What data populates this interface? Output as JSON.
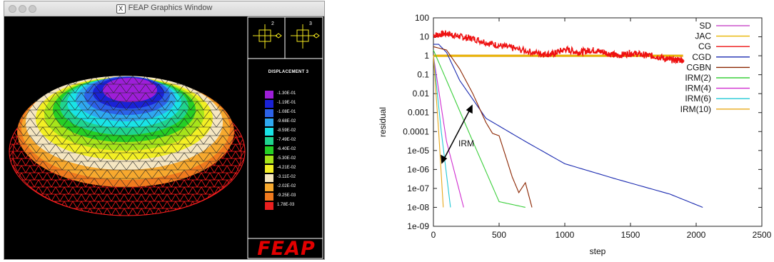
{
  "feap_window": {
    "title": "FEAP Graphics Window",
    "title_icon": "x11-icon",
    "legend_title": "DISPLACEMENT 3",
    "axis_labels": [
      "2",
      "3"
    ],
    "legend": [
      {
        "value": "-1.30E-01",
        "color": "#9e1ed8"
      },
      {
        "value": "-1.19E-01",
        "color": "#1a22d6"
      },
      {
        "value": "-1.08E-01",
        "color": "#2c62e8"
      },
      {
        "value": "-9.68E-02",
        "color": "#2fa8f0"
      },
      {
        "value": "-8.59E-02",
        "color": "#19e3e6"
      },
      {
        "value": "-7.49E-02",
        "color": "#1fd48f"
      },
      {
        "value": "-6.40E-02",
        "color": "#25cf25"
      },
      {
        "value": "-5.30E-02",
        "color": "#a6e41a"
      },
      {
        "value": "-4.21E-02",
        "color": "#f3ef24"
      },
      {
        "value": "-3.11E-02",
        "color": "#f5e6c1"
      },
      {
        "value": "-2.02E-02",
        "color": "#f7a92e"
      },
      {
        "value": "-9.25E-03",
        "color": "#f07a1e"
      },
      {
        "value": "1.78E-03",
        "color": "#ea1f1f"
      }
    ],
    "logo": "FEAP"
  },
  "chart_data": {
    "type": "line",
    "xlabel": "step",
    "ylabel": "residual",
    "xlim": [
      0,
      2500
    ],
    "ylim": [
      1e-09,
      100
    ],
    "yscale": "log",
    "xticks": [
      "0",
      "500",
      "1000",
      "1500",
      "2000",
      "2500"
    ],
    "yticks": [
      "100",
      "10",
      "1",
      "0.1",
      "0.01",
      "0.001",
      "0.0001",
      "1e-05",
      "1e-06",
      "1e-07",
      "1e-08",
      "1e-09"
    ],
    "legend_position": "top-right",
    "annotation": "IRM",
    "series": [
      {
        "name": "SD",
        "color": "#cc55cc",
        "points": [
          [
            0,
            1.0
          ],
          [
            1900,
            1.0
          ]
        ]
      },
      {
        "name": "JAC",
        "color": "#e8b400",
        "points": [
          [
            0,
            1.0
          ],
          [
            1900,
            1.0
          ]
        ]
      },
      {
        "name": "CG",
        "color": "#ee1111",
        "points": [
          [
            0,
            12
          ],
          [
            100,
            15
          ],
          [
            200,
            10
          ],
          [
            300,
            8
          ],
          [
            450,
            4
          ],
          [
            600,
            2.5
          ],
          [
            800,
            1.3
          ],
          [
            900,
            1.2
          ],
          [
            1000,
            2.2
          ],
          [
            1100,
            1.5
          ],
          [
            1200,
            2.0
          ],
          [
            1300,
            1.5
          ],
          [
            1400,
            1.0
          ],
          [
            1500,
            1.4
          ],
          [
            1600,
            1.1
          ],
          [
            1700,
            0.9
          ],
          [
            1800,
            0.6
          ],
          [
            1900,
            0.6
          ]
        ]
      },
      {
        "name": "CGD",
        "color": "#1a2ab0",
        "points": [
          [
            0,
            4
          ],
          [
            40,
            4
          ],
          [
            100,
            1.5
          ],
          [
            200,
            0.05
          ],
          [
            400,
            0.0005
          ],
          [
            700,
            3e-05
          ],
          [
            1000,
            2e-06
          ],
          [
            1400,
            3e-07
          ],
          [
            1800,
            5e-08
          ],
          [
            2050,
            1e-08
          ]
        ]
      },
      {
        "name": "CGBN",
        "color": "#8b2500",
        "points": [
          [
            0,
            3
          ],
          [
            100,
            2
          ],
          [
            200,
            0.2
          ],
          [
            300,
            0.01
          ],
          [
            400,
            0.0003
          ],
          [
            450,
            8e-05
          ],
          [
            500,
            6e-05
          ],
          [
            550,
            5e-06
          ],
          [
            600,
            4e-07
          ],
          [
            650,
            6e-08
          ],
          [
            700,
            2e-07
          ],
          [
            750,
            1e-08
          ]
        ]
      },
      {
        "name": "IRM(2)",
        "color": "#3ccf3c",
        "points": [
          [
            0,
            2
          ],
          [
            100,
            0.05
          ],
          [
            300,
            3e-05
          ],
          [
            500,
            2e-08
          ],
          [
            700,
            1e-08
          ]
        ]
      },
      {
        "name": "IRM(4)",
        "color": "#d02ed0",
        "points": [
          [
            0,
            1
          ],
          [
            100,
            3e-05
          ],
          [
            230,
            1e-08
          ]
        ]
      },
      {
        "name": "IRM(6)",
        "color": "#22c8d6",
        "points": [
          [
            0,
            1
          ],
          [
            60,
            0.0001
          ],
          [
            130,
            1e-08
          ]
        ]
      },
      {
        "name": "IRM(10)",
        "color": "#e8a81a",
        "points": [
          [
            0,
            1
          ],
          [
            40,
            0.0001
          ],
          [
            75,
            1e-08
          ]
        ]
      }
    ]
  }
}
